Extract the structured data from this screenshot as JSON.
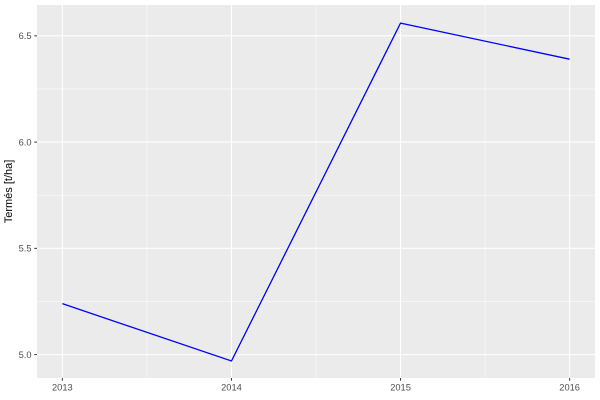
{
  "chart_data": {
    "type": "line",
    "title": "",
    "xlabel": "",
    "ylabel": "Termés [t/ha]",
    "x": [
      2013,
      2014,
      2015,
      2016
    ],
    "series": [
      {
        "name": "Termés",
        "values": [
          5.24,
          4.97,
          6.56,
          6.39
        ]
      }
    ],
    "x_ticks": [
      2013,
      2014,
      2015,
      2016
    ],
    "x_tick_labels": [
      "2013",
      "2014",
      "2015",
      "2016"
    ],
    "y_ticks": [
      5.0,
      5.5,
      6.0,
      6.5
    ],
    "y_tick_labels": [
      "5.0",
      "5.5",
      "6.0",
      "6.5"
    ],
    "xlim": [
      2012.85,
      2016.15
    ],
    "ylim": [
      4.89,
      6.645
    ],
    "grid": "major+minor",
    "legend": "none",
    "colors": {
      "line": "#0000FF",
      "panel_background": "#EBEBEB",
      "grid": "#FFFFFF",
      "axis_text": "#4D4D4D",
      "axis_title": "#000000",
      "tick_mark": "#333333",
      "figure_background": "#FFFFFF"
    }
  }
}
